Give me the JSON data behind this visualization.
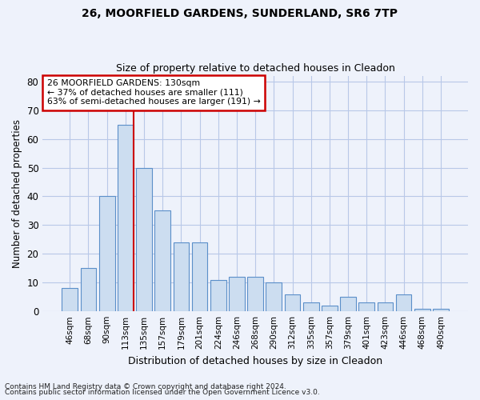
{
  "title1": "26, MOORFIELD GARDENS, SUNDERLAND, SR6 7TP",
  "title2": "Size of property relative to detached houses in Cleadon",
  "xlabel": "Distribution of detached houses by size in Cleadon",
  "ylabel": "Number of detached properties",
  "categories": [
    "46sqm",
    "68sqm",
    "90sqm",
    "113sqm",
    "135sqm",
    "157sqm",
    "179sqm",
    "201sqm",
    "224sqm",
    "246sqm",
    "268sqm",
    "290sqm",
    "312sqm",
    "335sqm",
    "357sqm",
    "379sqm",
    "401sqm",
    "423sqm",
    "446sqm",
    "468sqm",
    "490sqm"
  ],
  "values": [
    8,
    15,
    40,
    65,
    50,
    35,
    24,
    24,
    11,
    12,
    12,
    10,
    6,
    3,
    2,
    5,
    3,
    3,
    6,
    1,
    1
  ],
  "bar_color": "#ccddf0",
  "bar_edge_color": "#5b8fc9",
  "grid_color": "#b8c8e8",
  "vline_color": "#cc0000",
  "annotation_line1": "26 MOORFIELD GARDENS: 130sqm",
  "annotation_line2": "← 37% of detached houses are smaller (111)",
  "annotation_line3": "63% of semi-detached houses are larger (191) →",
  "annotation_box_color": "#ffffff",
  "annotation_box_edge": "#cc0000",
  "ylim": [
    0,
    82
  ],
  "yticks": [
    0,
    10,
    20,
    30,
    40,
    50,
    60,
    70,
    80
  ],
  "footnote1": "Contains HM Land Registry data © Crown copyright and database right 2024.",
  "footnote2": "Contains public sector information licensed under the Open Government Licence v3.0.",
  "background_color": "#eef2fb",
  "title1_fontsize": 10,
  "title2_fontsize": 9
}
